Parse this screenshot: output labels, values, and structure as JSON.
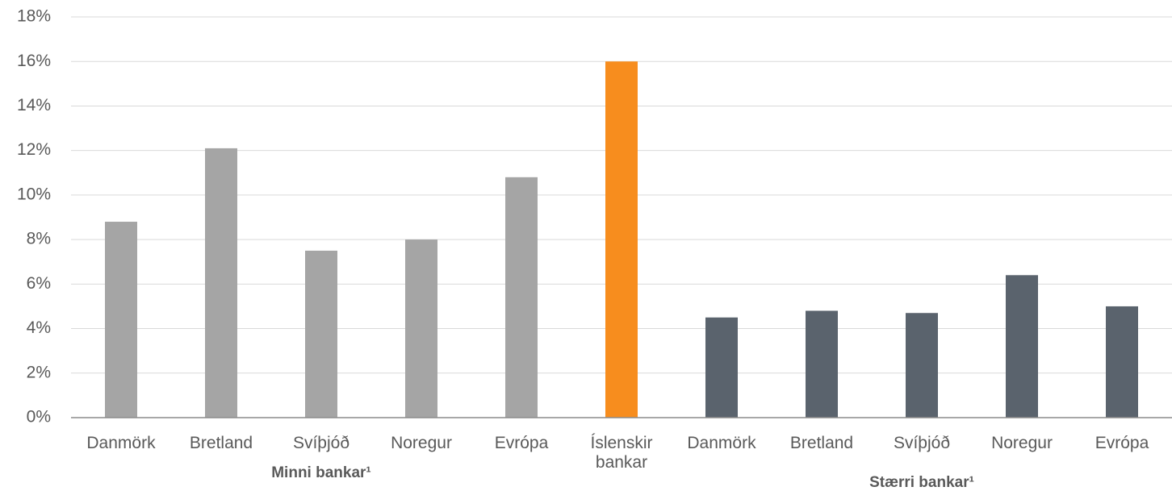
{
  "chart_data": {
    "type": "bar",
    "categories": [
      "Danmörk",
      "Bretland",
      "Svíþjóð",
      "Noregur",
      "Evrópa",
      "Íslenskir bankar",
      "Danmörk",
      "Bretland",
      "Svíþjóð",
      "Noregur",
      "Evrópa"
    ],
    "values": [
      8.8,
      12.1,
      7.5,
      8.0,
      10.8,
      16.0,
      4.5,
      4.8,
      4.7,
      6.4,
      5.0
    ],
    "colors": [
      "#a5a5a5",
      "#a5a5a5",
      "#a5a5a5",
      "#a5a5a5",
      "#a5a5a5",
      "#f78d1e",
      "#5a636d",
      "#5a636d",
      "#5a636d",
      "#5a636d",
      "#5a636d"
    ],
    "groups": [
      {
        "label": "Minni bankar¹",
        "from": 0,
        "to": 4
      },
      {
        "label": "Stærri bankar¹",
        "from": 6,
        "to": 10
      }
    ],
    "ylim": [
      0,
      18
    ],
    "yticks": [
      {
        "value": 0,
        "label": "0%"
      },
      {
        "value": 2,
        "label": "2%"
      },
      {
        "value": 4,
        "label": "4%"
      },
      {
        "value": 6,
        "label": "6%"
      },
      {
        "value": 8,
        "label": "8%"
      },
      {
        "value": 10,
        "label": "10%"
      },
      {
        "value": 12,
        "label": "12%"
      },
      {
        "value": 14,
        "label": "14%"
      },
      {
        "value": 16,
        "label": "16%"
      },
      {
        "value": 18,
        "label": "18%"
      }
    ],
    "grid": true
  }
}
